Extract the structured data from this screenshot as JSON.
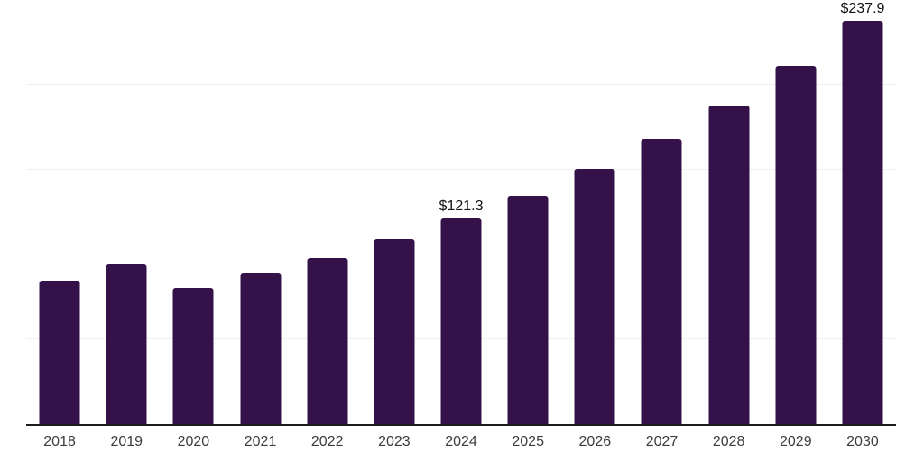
{
  "chart_data": {
    "type": "bar",
    "title": "",
    "xlabel": "",
    "ylabel": "",
    "categories": [
      "2018",
      "2019",
      "2020",
      "2021",
      "2022",
      "2023",
      "2024",
      "2025",
      "2026",
      "2027",
      "2028",
      "2029",
      "2030"
    ],
    "values": [
      84.6,
      94.1,
      80.1,
      89.1,
      97.9,
      109.0,
      121.3,
      134.6,
      150.5,
      168.1,
      187.8,
      211.4,
      237.9
    ],
    "data_labels": [
      "",
      "",
      "",
      "",
      "",
      "",
      "$121.3",
      "",
      "",
      "",
      "",
      "",
      "$237.9"
    ],
    "ylim": [
      0,
      250
    ],
    "gridline_values": [
      50,
      100,
      150,
      200
    ],
    "grid": "horizontal-only",
    "legend": "none",
    "y_axis_labels_visible": false,
    "colors": {
      "bar": "#351149",
      "gridline": "#f0f0f0",
      "axis_line": "#1c1c1c",
      "data_label_text": "#111111",
      "tick_label_text": "#3c3c3c",
      "background": "#ffffff"
    }
  }
}
